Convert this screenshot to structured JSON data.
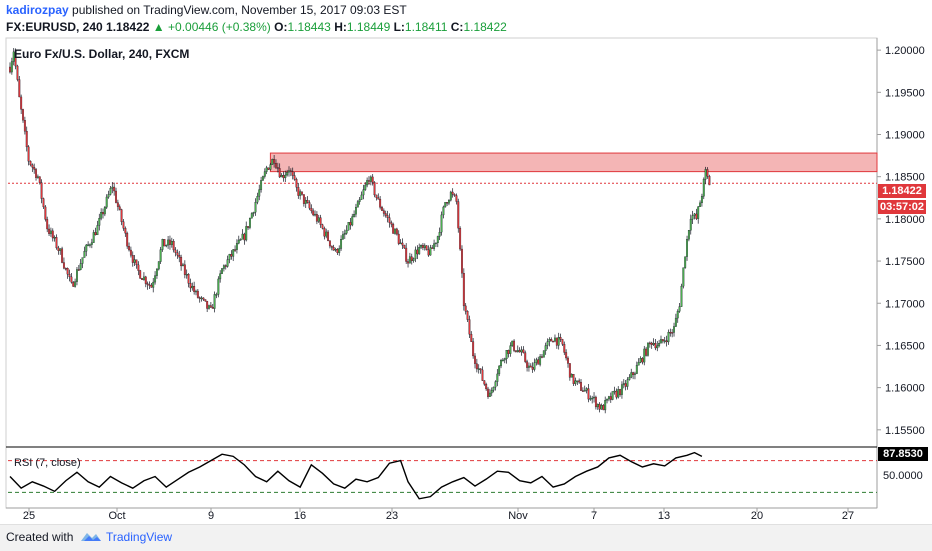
{
  "header": {
    "author": "kadirozpay",
    "published_text": "published on TradingView.com, November 15, 2017 09:03 EST",
    "symbol": "FX:EURUSD, 240",
    "last": "1.18422",
    "change": "+0.00446 (+0.38%)",
    "open_label": "O:",
    "open": "1.18443",
    "high_label": "H:",
    "high": "1.18449",
    "low_label": "L:",
    "low": "1.18411",
    "close_label": "C:",
    "close": "1.18422"
  },
  "footer": {
    "created_with": "Created with",
    "brand": "TradingView"
  },
  "colors": {
    "up_candle": "#4caf50",
    "down_candle": "#e0373b",
    "wick": "#131722",
    "resistance_zone": "#f4b5b5",
    "last_price_line": "#e0373b",
    "rsi_line": "#000000",
    "rsi_overbought": "#e0373b",
    "rsi_oversold": "#2e7d32"
  },
  "chart_data": [
    {
      "type": "candlestick",
      "title": "Euro Fx/U.S. Dollar, 240, FXCM",
      "ylim": [
        1.1532,
        1.2012
      ],
      "price_scale_ticks": [
        "1.20000",
        "1.19500",
        "1.19000",
        "1.18500",
        "1.18000",
        "1.17500",
        "1.17000",
        "1.16500",
        "1.16000",
        "1.15500"
      ],
      "x_tick_labels": [
        "25",
        "Oct",
        "9",
        "16",
        "23",
        "Nov",
        "7",
        "13",
        "20",
        "27"
      ],
      "last_price": "1.18422",
      "countdown": "03:57:02",
      "resistance_zone": [
        1.1856,
        1.1878
      ],
      "close_path": [
        [
          0,
          1.198
        ],
        [
          2,
          1.2
        ],
        [
          5,
          1.1942
        ],
        [
          10,
          1.187
        ],
        [
          15,
          1.185
        ],
        [
          20,
          1.179
        ],
        [
          27,
          1.176
        ],
        [
          33,
          1.172
        ],
        [
          40,
          1.176
        ],
        [
          47,
          1.179
        ],
        [
          55,
          1.184
        ],
        [
          62,
          1.178
        ],
        [
          68,
          1.174
        ],
        [
          76,
          1.172
        ],
        [
          82,
          1.177
        ],
        [
          87,
          1.177
        ],
        [
          93,
          1.174
        ],
        [
          100,
          1.171
        ],
        [
          108,
          1.169
        ],
        [
          114,
          1.174
        ],
        [
          120,
          1.176
        ],
        [
          126,
          1.178
        ],
        [
          132,
          1.182
        ],
        [
          138,
          1.186
        ],
        [
          142,
          1.1872
        ],
        [
          146,
          1.185
        ],
        [
          150,
          1.186
        ],
        [
          154,
          1.1835
        ],
        [
          160,
          1.1815
        ],
        [
          165,
          1.18
        ],
        [
          170,
          1.178
        ],
        [
          175,
          1.176
        ],
        [
          182,
          1.179
        ],
        [
          188,
          1.182
        ],
        [
          193,
          1.185
        ],
        [
          198,
          1.182
        ],
        [
          203,
          1.18
        ],
        [
          208,
          1.178
        ],
        [
          214,
          1.175
        ],
        [
          220,
          1.1765
        ],
        [
          226,
          1.176
        ],
        [
          230,
          1.178
        ],
        [
          234,
          1.182
        ],
        [
          237,
          1.183
        ],
        [
          240,
          1.182
        ],
        [
          244,
          1.17
        ],
        [
          249,
          1.164
        ],
        [
          254,
          1.161
        ],
        [
          258,
          1.159
        ],
        [
          262,
          1.162
        ],
        [
          266,
          1.164
        ],
        [
          270,
          1.165
        ],
        [
          275,
          1.164
        ],
        [
          280,
          1.162
        ],
        [
          286,
          1.164
        ],
        [
          292,
          1.166
        ],
        [
          297,
          1.165
        ],
        [
          302,
          1.161
        ],
        [
          307,
          1.16
        ],
        [
          312,
          1.159
        ],
        [
          318,
          1.1575
        ],
        [
          324,
          1.159
        ],
        [
          330,
          1.16
        ],
        [
          336,
          1.162
        ],
        [
          341,
          1.164
        ],
        [
          345,
          1.1655
        ],
        [
          349,
          1.165
        ],
        [
          353,
          1.166
        ],
        [
          357,
          1.167
        ],
        [
          360,
          1.17
        ],
        [
          363,
          1.176
        ],
        [
          366,
          1.1805
        ],
        [
          369,
          1.18
        ],
        [
          372,
          1.183
        ],
        [
          374,
          1.1855
        ],
        [
          376,
          1.1842
        ]
      ]
    },
    {
      "type": "line",
      "title": "RSI (7, close)",
      "ylim": [
        0,
        100
      ],
      "value_axis_label": "50.0000",
      "last_value": "87.8530",
      "overbought": 80,
      "oversold": 20,
      "values": [
        [
          0,
          50
        ],
        [
          6,
          28
        ],
        [
          12,
          40
        ],
        [
          18,
          32
        ],
        [
          24,
          22
        ],
        [
          30,
          42
        ],
        [
          36,
          58
        ],
        [
          42,
          40
        ],
        [
          48,
          30
        ],
        [
          54,
          50
        ],
        [
          60,
          38
        ],
        [
          66,
          28
        ],
        [
          72,
          42
        ],
        [
          78,
          50
        ],
        [
          84,
          30
        ],
        [
          90,
          44
        ],
        [
          96,
          58
        ],
        [
          102,
          68
        ],
        [
          108,
          80
        ],
        [
          114,
          92
        ],
        [
          120,
          88
        ],
        [
          126,
          72
        ],
        [
          132,
          50
        ],
        [
          138,
          40
        ],
        [
          144,
          60
        ],
        [
          150,
          42
        ],
        [
          156,
          30
        ],
        [
          162,
          72
        ],
        [
          168,
          56
        ],
        [
          174,
          36
        ],
        [
          180,
          28
        ],
        [
          186,
          45
        ],
        [
          192,
          40
        ],
        [
          198,
          48
        ],
        [
          204,
          75
        ],
        [
          210,
          80
        ],
        [
          214,
          40
        ],
        [
          220,
          8
        ],
        [
          226,
          12
        ],
        [
          232,
          30
        ],
        [
          238,
          40
        ],
        [
          244,
          48
        ],
        [
          250,
          32
        ],
        [
          256,
          45
        ],
        [
          262,
          60
        ],
        [
          268,
          58
        ],
        [
          274,
          42
        ],
        [
          280,
          38
        ],
        [
          286,
          50
        ],
        [
          292,
          30
        ],
        [
          298,
          36
        ],
        [
          304,
          50
        ],
        [
          310,
          60
        ],
        [
          316,
          68
        ],
        [
          322,
          85
        ],
        [
          328,
          90
        ],
        [
          334,
          78
        ],
        [
          340,
          68
        ],
        [
          346,
          74
        ],
        [
          352,
          70
        ],
        [
          358,
          85
        ],
        [
          364,
          90
        ],
        [
          368,
          95
        ],
        [
          372,
          88
        ]
      ]
    }
  ]
}
